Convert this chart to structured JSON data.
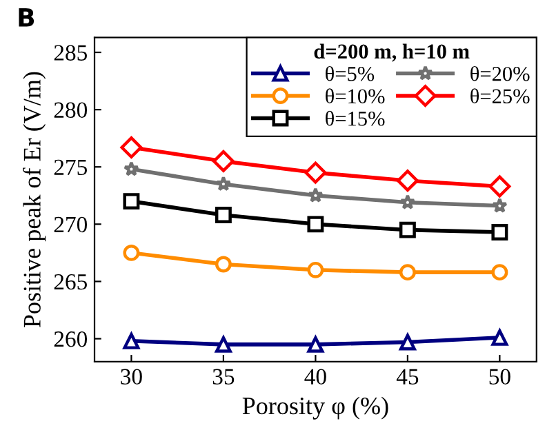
{
  "chart_data": {
    "type": "line",
    "title": "B",
    "xlabel": "Porosity φ (%)",
    "ylabel": "Positive peak of Er (V/m)",
    "legend_title": "d=200 m, h=10 m",
    "x": [
      30,
      35,
      40,
      45,
      50
    ],
    "series": [
      {
        "name": "θ=5%",
        "color": "#000080",
        "marker": "triangle",
        "values": [
          259.8,
          259.5,
          259.5,
          259.7,
          260.1
        ]
      },
      {
        "name": "θ=10%",
        "color": "#ff8c00",
        "marker": "circle",
        "values": [
          267.5,
          266.5,
          266.0,
          265.8,
          265.8
        ]
      },
      {
        "name": "θ=15%",
        "color": "#000000",
        "marker": "square",
        "values": [
          272.0,
          270.8,
          270.0,
          269.5,
          269.3
        ]
      },
      {
        "name": "θ=20%",
        "color": "#707070",
        "marker": "star",
        "values": [
          274.8,
          273.5,
          272.5,
          271.9,
          271.6
        ]
      },
      {
        "name": "θ=25%",
        "color": "#ff0000",
        "marker": "diamond",
        "values": [
          276.7,
          275.5,
          274.5,
          273.8,
          273.3
        ]
      }
    ],
    "xlim": [
      28,
      52
    ],
    "xticks": [
      30,
      35,
      40,
      45,
      50
    ],
    "ylim": [
      258,
      286.3
    ],
    "yticks": [
      260,
      265,
      270,
      275,
      280,
      285
    ],
    "grid": false,
    "legend": "top right",
    "line_style": "solid"
  }
}
